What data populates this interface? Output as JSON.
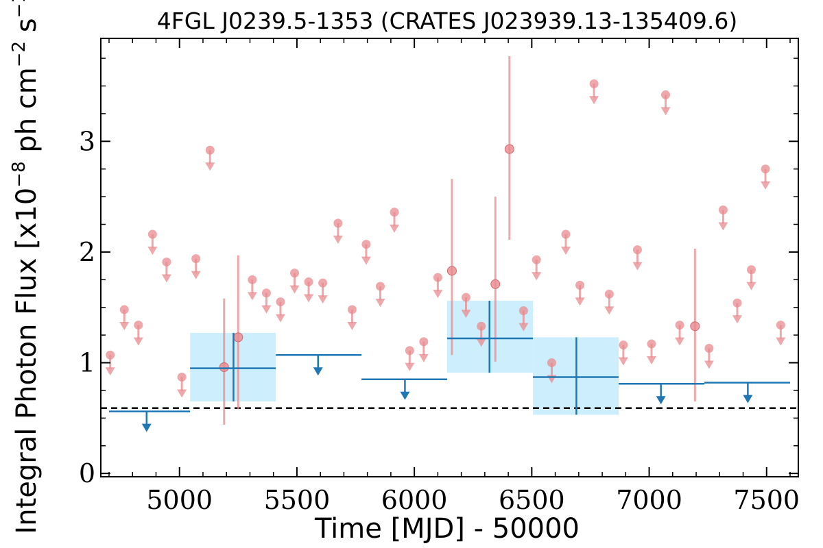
{
  "chart_data": {
    "type": "scatter",
    "title": "4FGL J0239.5-1353 (CRATES J023939.13-135409.6)",
    "xlabel": "Time [MJD] - 50000",
    "ylabel_main": "Integral Photon Flux [x10",
    "ylabel_exp1": "−8",
    "ylabel_mid": " ph cm",
    "ylabel_exp2": "−2",
    "ylabel_tail": " s",
    "ylabel_exp3": "−1",
    "ylabel_end": "]",
    "xlim": [
      4665,
      7635
    ],
    "ylim": [
      -0.03,
      3.93
    ],
    "x_ticks": [
      5000,
      5500,
      6000,
      6500,
      7000,
      7500
    ],
    "x_tick_labels": [
      "5000",
      "5500",
      "6000",
      "6500",
      "7000",
      "7500"
    ],
    "y_ticks": [
      0,
      1,
      2,
      3
    ],
    "y_tick_labels": [
      "0",
      "1",
      "2",
      "3"
    ],
    "average_flux": 0.59,
    "colors": {
      "short_bins": "#e88a8d",
      "long_bins": "#1f77b4",
      "error_box": "#cdeefc",
      "average_line": "#000000"
    },
    "short_bin_upper_limits": [
      {
        "x": 4705,
        "y": 1.07
      },
      {
        "x": 4765,
        "y": 1.48
      },
      {
        "x": 4825,
        "y": 1.34
      },
      {
        "x": 4885,
        "y": 2.16
      },
      {
        "x": 4945,
        "y": 1.91
      },
      {
        "x": 5010,
        "y": 0.87
      },
      {
        "x": 5070,
        "y": 1.94
      },
      {
        "x": 5130,
        "y": 2.92
      },
      {
        "x": 5310,
        "y": 1.75
      },
      {
        "x": 5370,
        "y": 1.63
      },
      {
        "x": 5430,
        "y": 1.55
      },
      {
        "x": 5490,
        "y": 1.81
      },
      {
        "x": 5550,
        "y": 1.73
      },
      {
        "x": 5610,
        "y": 1.72
      },
      {
        "x": 5675,
        "y": 2.26
      },
      {
        "x": 5735,
        "y": 1.48
      },
      {
        "x": 5795,
        "y": 2.07
      },
      {
        "x": 5855,
        "y": 1.69
      },
      {
        "x": 5915,
        "y": 2.36
      },
      {
        "x": 5980,
        "y": 1.11
      },
      {
        "x": 6040,
        "y": 1.19
      },
      {
        "x": 6100,
        "y": 1.77
      },
      {
        "x": 6220,
        "y": 1.59
      },
      {
        "x": 6285,
        "y": 1.33
      },
      {
        "x": 6465,
        "y": 1.47
      },
      {
        "x": 6520,
        "y": 1.93
      },
      {
        "x": 6585,
        "y": 1.0
      },
      {
        "x": 6645,
        "y": 2.16
      },
      {
        "x": 6705,
        "y": 1.7
      },
      {
        "x": 6765,
        "y": 3.52
      },
      {
        "x": 6830,
        "y": 1.62
      },
      {
        "x": 6890,
        "y": 1.16
      },
      {
        "x": 6950,
        "y": 2.02
      },
      {
        "x": 7010,
        "y": 1.17
      },
      {
        "x": 7070,
        "y": 3.42
      },
      {
        "x": 7130,
        "y": 1.34
      },
      {
        "x": 7255,
        "y": 1.13
      },
      {
        "x": 7315,
        "y": 2.38
      },
      {
        "x": 7375,
        "y": 1.54
      },
      {
        "x": 7435,
        "y": 1.84
      },
      {
        "x": 7495,
        "y": 2.75
      },
      {
        "x": 7560,
        "y": 1.34
      }
    ],
    "short_bin_detections": [
      {
        "x": 5190,
        "y": 0.96,
        "y_low": 0.44,
        "y_high": 1.58
      },
      {
        "x": 5250,
        "y": 1.23,
        "y_low": 0.58,
        "y_high": 1.97
      },
      {
        "x": 6160,
        "y": 1.83,
        "y_low": 1.07,
        "y_high": 2.66
      },
      {
        "x": 6345,
        "y": 1.71,
        "y_low": 1.01,
        "y_high": 2.5
      },
      {
        "x": 6405,
        "y": 2.93,
        "y_low": 2.11,
        "y_high": 3.77
      },
      {
        "x": 7195,
        "y": 1.33,
        "y_low": 0.65,
        "y_high": 2.03
      }
    ],
    "long_bin_detections": [
      {
        "x": 5230,
        "x_low": 5045,
        "x_high": 5410,
        "y": 0.95,
        "y_low": 0.65,
        "y_high": 1.27
      },
      {
        "x": 6320,
        "x_low": 6140,
        "x_high": 6505,
        "y": 1.22,
        "y_low": 0.91,
        "y_high": 1.56
      },
      {
        "x": 6690,
        "x_low": 6505,
        "x_high": 6870,
        "y": 0.87,
        "y_low": 0.53,
        "y_high": 1.23
      }
    ],
    "long_bin_upper_limits": [
      {
        "x": 4860,
        "x_low": 4700,
        "x_high": 5045,
        "y": 0.56
      },
      {
        "x": 5590,
        "x_low": 5410,
        "x_high": 5775,
        "y": 1.07
      },
      {
        "x": 5960,
        "x_low": 5775,
        "x_high": 6140,
        "y": 0.85
      },
      {
        "x": 7050,
        "x_low": 6870,
        "x_high": 7235,
        "y": 0.81
      },
      {
        "x": 7420,
        "x_low": 7235,
        "x_high": 7600,
        "y": 0.82
      }
    ]
  }
}
